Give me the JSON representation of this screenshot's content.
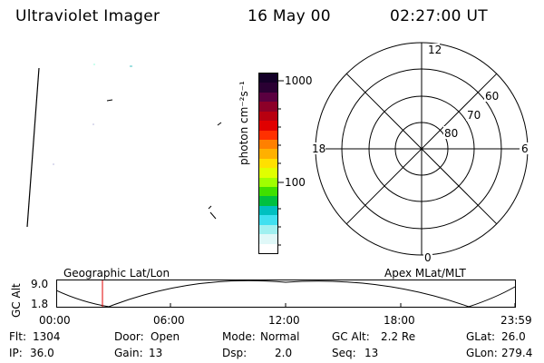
{
  "header": {
    "instrument": "Ultraviolet Imager",
    "date": "16 May 00",
    "time": "02:27:00 UT"
  },
  "colorbar": {
    "unit_label": "photon cm⁻²s⁻¹",
    "tick_1000": "1000",
    "tick_100": "100",
    "colors": [
      "#140028",
      "#2a0033",
      "#5a0040",
      "#8c0028",
      "#b80010",
      "#e00000",
      "#ff3000",
      "#ff8000",
      "#ffb000",
      "#ffe000",
      "#e0ff00",
      "#a0ff00",
      "#40e000",
      "#00c040",
      "#00c0c0",
      "#40e0f0",
      "#a0f0f0",
      "#e0f8f8",
      "#ffffff"
    ]
  },
  "polar": {
    "mlt_labels": {
      "top": "12",
      "left": "18",
      "right": "6",
      "bottom": "0"
    },
    "lat_labels": [
      "60",
      "70",
      "80"
    ]
  },
  "orbit": {
    "left_label": "Geographic Lat/Lon",
    "right_label": "Apex  MLat/MLT",
    "axis_label": "GC Alt",
    "y_top": "9.0",
    "y_bottom": "1.8",
    "time_ticks": [
      "00:00",
      "06:00",
      "12:00",
      "18:00",
      "23:59"
    ]
  },
  "status": {
    "flt_label": "Flt:",
    "flt_value": "1304",
    "ip_label": "IP:",
    "ip_value": "36.0",
    "door_label": "Door:",
    "door_value": "Open",
    "gain_label": "Gain:",
    "gain_value": "13",
    "mode_label": "Mode:",
    "mode_value": "Normal",
    "dsp_label": "Dsp:",
    "dsp_value": "2.0",
    "gcalt_label": "GC Alt:",
    "gcalt_value": "2.2 Re",
    "seq_label": "Seq:",
    "seq_value": "13",
    "glat_label": "GLat:",
    "glat_value": "26.0",
    "glon_label": "GLon:",
    "glon_value": "279.4"
  }
}
